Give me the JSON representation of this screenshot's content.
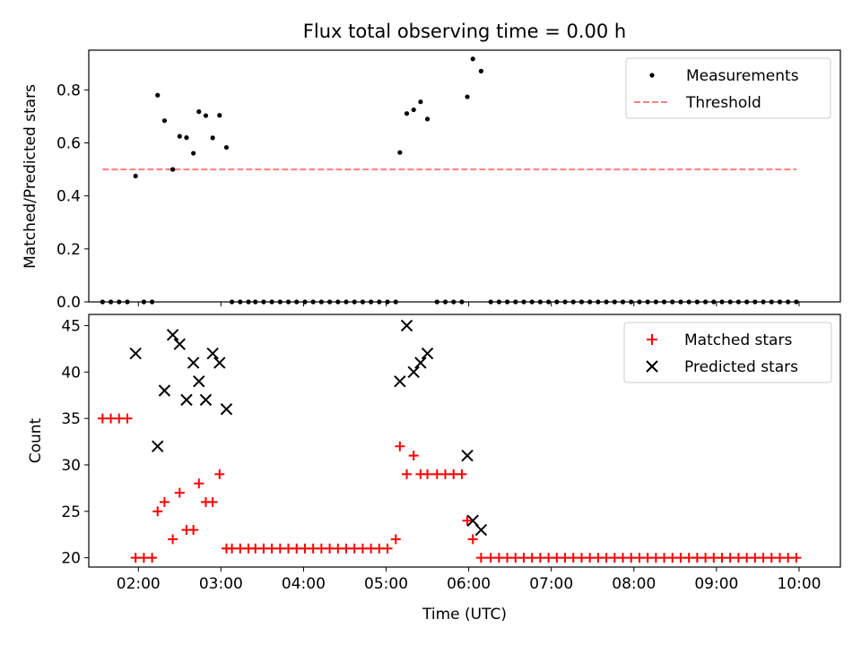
{
  "chart_data": {
    "title": "Flux total observing time = 0.00 h",
    "type": "scatter",
    "xlabel": "Time (UTC)",
    "x_ticks": [
      "02:00",
      "03:00",
      "04:00",
      "05:00",
      "06:00",
      "07:00",
      "08:00",
      "09:00",
      "10:00"
    ],
    "xlim": [
      "01:24",
      "10:30"
    ],
    "panels": [
      {
        "ylabel": "Matched/Predicted stars",
        "ylim": [
          0.0,
          0.95
        ],
        "y_ticks": [
          "0.0",
          "0.2",
          "0.4",
          "0.6",
          "0.8"
        ],
        "legend_position": "top-right",
        "series": [
          {
            "name": "Measurements",
            "type": "scatter",
            "marker": "dot",
            "color": "#000000",
            "points": [
              [
                "01:34",
                0.0
              ],
              [
                "01:40",
                0.0
              ],
              [
                "01:46",
                0.0
              ],
              [
                "01:52",
                0.0
              ],
              [
                "01:58",
                0.475
              ],
              [
                "02:04",
                0.0
              ],
              [
                "02:10",
                0.0
              ],
              [
                "02:14",
                0.78
              ],
              [
                "02:19",
                0.684
              ],
              [
                "02:25",
                0.5
              ],
              [
                "02:30",
                0.625
              ],
              [
                "02:35",
                0.62
              ],
              [
                "02:40",
                0.561
              ],
              [
                "02:44",
                0.718
              ],
              [
                "02:49",
                0.703
              ],
              [
                "02:54",
                0.619
              ],
              [
                "02:59",
                0.704
              ],
              [
                "03:04",
                0.583
              ],
              [
                "03:08",
                0.0
              ],
              [
                "03:14",
                0.0
              ],
              [
                "03:20",
                0.0
              ],
              [
                "03:25",
                0.0
              ],
              [
                "03:31",
                0.0
              ],
              [
                "03:37",
                0.0
              ],
              [
                "03:43",
                0.0
              ],
              [
                "03:49",
                0.0
              ],
              [
                "03:55",
                0.0
              ],
              [
                "04:01",
                0.0
              ],
              [
                "04:07",
                0.0
              ],
              [
                "04:13",
                0.0
              ],
              [
                "04:19",
                0.0
              ],
              [
                "04:25",
                0.0
              ],
              [
                "04:31",
                0.0
              ],
              [
                "04:37",
                0.0
              ],
              [
                "04:43",
                0.0
              ],
              [
                "04:49",
                0.0
              ],
              [
                "04:55",
                0.0
              ],
              [
                "05:01",
                0.0
              ],
              [
                "05:07",
                0.0
              ],
              [
                "05:10",
                0.564
              ],
              [
                "05:15",
                0.711
              ],
              [
                "05:20",
                0.725
              ],
              [
                "05:25",
                0.755
              ],
              [
                "05:30",
                0.69
              ],
              [
                "05:37",
                0.0
              ],
              [
                "05:43",
                0.0
              ],
              [
                "05:49",
                0.0
              ],
              [
                "05:55",
                0.0
              ],
              [
                "05:59",
                0.774
              ],
              [
                "06:03",
                0.917
              ],
              [
                "06:09",
                0.871
              ],
              [
                "06:16",
                0.0
              ],
              [
                "06:22",
                0.0
              ],
              [
                "06:28",
                0.0
              ],
              [
                "06:34",
                0.0
              ],
              [
                "06:40",
                0.0
              ],
              [
                "06:46",
                0.0
              ],
              [
                "06:52",
                0.0
              ],
              [
                "06:58",
                0.0
              ],
              [
                "07:04",
                0.0
              ],
              [
                "07:10",
                0.0
              ],
              [
                "07:16",
                0.0
              ],
              [
                "07:22",
                0.0
              ],
              [
                "07:28",
                0.0
              ],
              [
                "07:34",
                0.0
              ],
              [
                "07:40",
                0.0
              ],
              [
                "07:46",
                0.0
              ],
              [
                "07:52",
                0.0
              ],
              [
                "07:58",
                0.0
              ],
              [
                "08:04",
                0.0
              ],
              [
                "08:10",
                0.0
              ],
              [
                "08:16",
                0.0
              ],
              [
                "08:22",
                0.0
              ],
              [
                "08:28",
                0.0
              ],
              [
                "08:34",
                0.0
              ],
              [
                "08:40",
                0.0
              ],
              [
                "08:46",
                0.0
              ],
              [
                "08:52",
                0.0
              ],
              [
                "08:58",
                0.0
              ],
              [
                "09:04",
                0.0
              ],
              [
                "09:10",
                0.0
              ],
              [
                "09:16",
                0.0
              ],
              [
                "09:22",
                0.0
              ],
              [
                "09:28",
                0.0
              ],
              [
                "09:34",
                0.0
              ],
              [
                "09:40",
                0.0
              ],
              [
                "09:46",
                0.0
              ],
              [
                "09:52",
                0.0
              ],
              [
                "09:58",
                0.0
              ]
            ]
          },
          {
            "name": "Threshold",
            "type": "line",
            "style": "dashed",
            "color": "#ff7f7f",
            "points": [
              [
                "01:34",
                0.5
              ],
              [
                "09:58",
                0.5
              ]
            ]
          }
        ]
      },
      {
        "ylabel": "Count",
        "ylim": [
          19,
          46.2
        ],
        "y_ticks": [
          "20",
          "25",
          "30",
          "35",
          "40",
          "45"
        ],
        "legend_position": "top-right",
        "series": [
          {
            "name": "Matched stars",
            "type": "scatter",
            "marker": "plus",
            "color": "#ff0000",
            "points": [
              [
                "01:34",
                35
              ],
              [
                "01:40",
                35
              ],
              [
                "01:46",
                35
              ],
              [
                "01:52",
                35
              ],
              [
                "01:58",
                20
              ],
              [
                "02:04",
                20
              ],
              [
                "02:10",
                20
              ],
              [
                "02:14",
                25
              ],
              [
                "02:19",
                26
              ],
              [
                "02:25",
                22
              ],
              [
                "02:30",
                27
              ],
              [
                "02:35",
                23
              ],
              [
                "02:40",
                23
              ],
              [
                "02:44",
                28
              ],
              [
                "02:49",
                26
              ],
              [
                "02:54",
                26
              ],
              [
                "02:59",
                29
              ],
              [
                "03:04",
                21
              ],
              [
                "03:08",
                21
              ],
              [
                "03:14",
                21
              ],
              [
                "03:20",
                21
              ],
              [
                "03:25",
                21
              ],
              [
                "03:31",
                21
              ],
              [
                "03:37",
                21
              ],
              [
                "03:43",
                21
              ],
              [
                "03:49",
                21
              ],
              [
                "03:55",
                21
              ],
              [
                "04:01",
                21
              ],
              [
                "04:07",
                21
              ],
              [
                "04:13",
                21
              ],
              [
                "04:19",
                21
              ],
              [
                "04:25",
                21
              ],
              [
                "04:31",
                21
              ],
              [
                "04:37",
                21
              ],
              [
                "04:43",
                21
              ],
              [
                "04:49",
                21
              ],
              [
                "04:55",
                21
              ],
              [
                "05:01",
                21
              ],
              [
                "05:07",
                22
              ],
              [
                "05:10",
                32
              ],
              [
                "05:15",
                29
              ],
              [
                "05:20",
                31
              ],
              [
                "05:25",
                29
              ],
              [
                "05:30",
                29
              ],
              [
                "05:37",
                29
              ],
              [
                "05:43",
                29
              ],
              [
                "05:49",
                29
              ],
              [
                "05:55",
                29
              ],
              [
                "05:59",
                24
              ],
              [
                "06:03",
                22
              ],
              [
                "06:09",
                20
              ],
              [
                "06:16",
                20
              ],
              [
                "06:22",
                20
              ],
              [
                "06:28",
                20
              ],
              [
                "06:34",
                20
              ],
              [
                "06:40",
                20
              ],
              [
                "06:46",
                20
              ],
              [
                "06:52",
                20
              ],
              [
                "06:58",
                20
              ],
              [
                "07:04",
                20
              ],
              [
                "07:10",
                20
              ],
              [
                "07:16",
                20
              ],
              [
                "07:22",
                20
              ],
              [
                "07:28",
                20
              ],
              [
                "07:34",
                20
              ],
              [
                "07:40",
                20
              ],
              [
                "07:46",
                20
              ],
              [
                "07:52",
                20
              ],
              [
                "07:58",
                20
              ],
              [
                "08:04",
                20
              ],
              [
                "08:10",
                20
              ],
              [
                "08:16",
                20
              ],
              [
                "08:22",
                20
              ],
              [
                "08:28",
                20
              ],
              [
                "08:34",
                20
              ],
              [
                "08:40",
                20
              ],
              [
                "08:46",
                20
              ],
              [
                "08:52",
                20
              ],
              [
                "08:58",
                20
              ],
              [
                "09:04",
                20
              ],
              [
                "09:10",
                20
              ],
              [
                "09:16",
                20
              ],
              [
                "09:22",
                20
              ],
              [
                "09:28",
                20
              ],
              [
                "09:34",
                20
              ],
              [
                "09:40",
                20
              ],
              [
                "09:46",
                20
              ],
              [
                "09:52",
                20
              ],
              [
                "09:58",
                20
              ]
            ]
          },
          {
            "name": "Predicted stars",
            "type": "scatter",
            "marker": "x",
            "color": "#000000",
            "points": [
              [
                "01:58",
                42
              ],
              [
                "02:14",
                32
              ],
              [
                "02:19",
                38
              ],
              [
                "02:25",
                44
              ],
              [
                "02:30",
                43
              ],
              [
                "02:35",
                37
              ],
              [
                "02:40",
                41
              ],
              [
                "02:44",
                39
              ],
              [
                "02:49",
                37
              ],
              [
                "02:54",
                42
              ],
              [
                "02:59",
                41
              ],
              [
                "03:04",
                36
              ],
              [
                "05:10",
                39
              ],
              [
                "05:15",
                45
              ],
              [
                "05:20",
                40
              ],
              [
                "05:25",
                41
              ],
              [
                "05:30",
                42
              ],
              [
                "05:59",
                31
              ],
              [
                "06:03",
                24
              ],
              [
                "06:09",
                23
              ]
            ]
          }
        ]
      }
    ]
  }
}
